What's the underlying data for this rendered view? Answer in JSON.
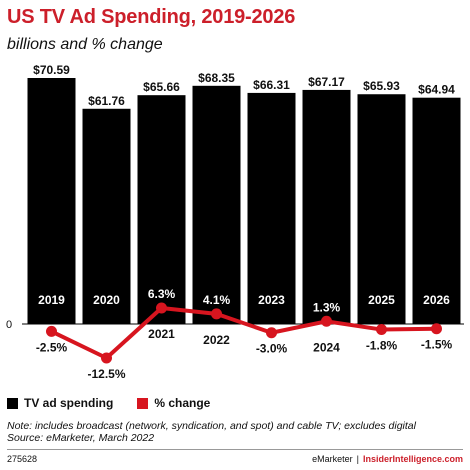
{
  "header": {
    "title": "US TV Ad Spending, 2019-2026",
    "subtitle": "billions and % change"
  },
  "legend": {
    "bar_label": "TV ad spending",
    "line_label": "% change"
  },
  "note": {
    "line1": "Note: includes broadcast (network, syndication, and spot) and cable TV; excludes digital",
    "line2": "Source: eMarketer, March 2022"
  },
  "footer": {
    "chart_id": "275628",
    "brand_left": "eMarketer",
    "separator": "|",
    "brand_right": "InsiderIntelligence.com"
  },
  "colors": {
    "bar": "#000000",
    "line": "#d7151f",
    "title": "#cc1f2a"
  },
  "chart_data": {
    "type": "bar",
    "categories": [
      "2019",
      "2020",
      "2021",
      "2022",
      "2023",
      "2024",
      "2025",
      "2026"
    ],
    "series": [
      {
        "name": "TV ad spending",
        "type": "bar",
        "values": [
          70.59,
          61.76,
          65.66,
          68.35,
          66.31,
          67.17,
          65.93,
          64.94
        ],
        "labels": [
          "$70.59",
          "$61.76",
          "$65.66",
          "$68.35",
          "$66.31",
          "$67.17",
          "$65.93",
          "$64.94"
        ]
      },
      {
        "name": "% change",
        "type": "line",
        "values": [
          -2.5,
          -12.5,
          6.3,
          4.1,
          -3.0,
          1.3,
          -1.8,
          -1.5
        ],
        "labels": [
          "-2.5%",
          "-12.5%",
          "6.3%",
          "4.1%",
          "-3.0%",
          "1.3%",
          "-1.8%",
          "-1.5%"
        ]
      }
    ],
    "zero_label": "0",
    "ylim": [
      0,
      70.59
    ],
    "line_ylim": [
      -12.5,
      6.3
    ],
    "legend_position": "bottom-left",
    "grid": false
  }
}
